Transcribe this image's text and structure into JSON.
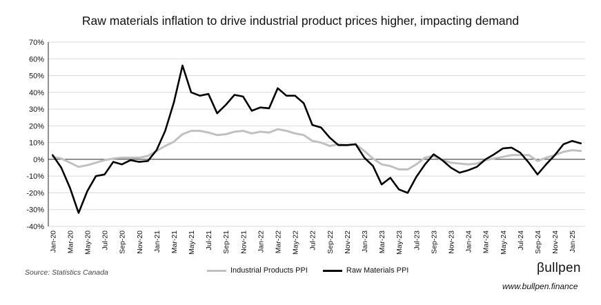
{
  "chart_data": {
    "type": "line",
    "title": "Raw materials inflation to drive industrial product prices higher, impacting demand",
    "ylim": [
      -40,
      70
    ],
    "yticks": [
      -40,
      -30,
      -20,
      -10,
      0,
      10,
      20,
      30,
      40,
      50,
      60,
      70
    ],
    "ytick_labels": [
      "-40%",
      "-30%",
      "-20%",
      "-10%",
      "0%",
      "10%",
      "20%",
      "30%",
      "40%",
      "50%",
      "60%",
      "70%"
    ],
    "x": [
      "2020-01",
      "2020-02",
      "2020-03",
      "2020-04",
      "2020-05",
      "2020-06",
      "2020-07",
      "2020-08",
      "2020-09",
      "2020-10",
      "2020-11",
      "2020-12",
      "2021-01",
      "2021-02",
      "2021-03",
      "2021-04",
      "2021-05",
      "2021-06",
      "2021-07",
      "2021-08",
      "2021-09",
      "2021-10",
      "2021-11",
      "2021-12",
      "2022-01",
      "2022-02",
      "2022-03",
      "2022-04",
      "2022-05",
      "2022-06",
      "2022-07",
      "2022-08",
      "2022-09",
      "2022-10",
      "2022-11",
      "2022-12",
      "2023-01",
      "2023-02",
      "2023-03",
      "2023-04",
      "2023-05",
      "2023-06",
      "2023-07",
      "2023-08",
      "2023-09",
      "2023-10",
      "2023-11",
      "2023-12",
      "2024-01",
      "2024-02",
      "2024-03",
      "2024-04",
      "2024-05",
      "2024-06",
      "2024-07",
      "2024-08",
      "2024-09",
      "2024-10",
      "2024-11",
      "2024-12",
      "2025-01",
      "2025-02"
    ],
    "xtick_labels": [
      "Jan-20",
      "Mar-20",
      "May-20",
      "Jul-20",
      "Sep-20",
      "Nov-20",
      "Jan-21",
      "Mar-21",
      "May-21",
      "Jul-21",
      "Sep-21",
      "Nov-21",
      "Jan-22",
      "Mar-22",
      "May-22",
      "Jul-22",
      "Sep-22",
      "Nov-22",
      "Jan-23",
      "Mar-23",
      "May-23",
      "Jul-23",
      "Sep-23",
      "Nov-23",
      "Jan-24",
      "Mar-24",
      "May-24",
      "Jul-24",
      "Sep-24",
      "Nov-24",
      "Jan-25"
    ],
    "series": [
      {
        "name": "Industrial Products PPI",
        "color": "#c0c0c0",
        "values": [
          1.5,
          0.5,
          -2,
          -4.5,
          -3.5,
          -2,
          -0.5,
          0.5,
          1,
          1,
          1,
          2,
          5,
          8,
          10.5,
          15,
          17,
          17,
          16,
          14.5,
          15,
          16.5,
          17,
          15.5,
          16.5,
          16,
          18,
          17,
          15.5,
          14.5,
          11,
          10,
          8,
          9,
          8.5,
          9,
          5,
          0.5,
          -3,
          -4,
          -6,
          -6,
          -3,
          1,
          2,
          -0.5,
          -2,
          -2.5,
          -3,
          -2.5,
          -0.5,
          0.5,
          1.5,
          2.5,
          2.5,
          2.5,
          -1,
          1,
          2.5,
          4.5,
          5.5,
          5
        ]
      },
      {
        "name": "Raw Materials PPI",
        "color": "#000000",
        "values": [
          2.5,
          -5,
          -17,
          -32,
          -19,
          -10,
          -9,
          -1.5,
          -3,
          -0.5,
          -1.5,
          -1,
          5.5,
          17,
          34,
          56,
          40,
          38,
          39,
          27.5,
          32.5,
          38.5,
          37.5,
          29,
          31,
          30.5,
          42.5,
          38,
          38,
          33.5,
          20.5,
          19,
          13,
          8.5,
          8.5,
          9,
          1,
          -4,
          -15,
          -11,
          -18,
          -20,
          -10.5,
          -3,
          3,
          -0.5,
          -5,
          -8,
          -6.5,
          -4.5,
          0,
          3,
          6.5,
          7,
          4,
          -2,
          -9,
          -3,
          2.5,
          9,
          11,
          9.5
        ]
      }
    ],
    "grid": "horizontal",
    "legend_position": "bottom"
  },
  "source": "Source: Statistics Canada",
  "brand": {
    "logo": "βullpen",
    "url": "www.bullpen.finance"
  }
}
